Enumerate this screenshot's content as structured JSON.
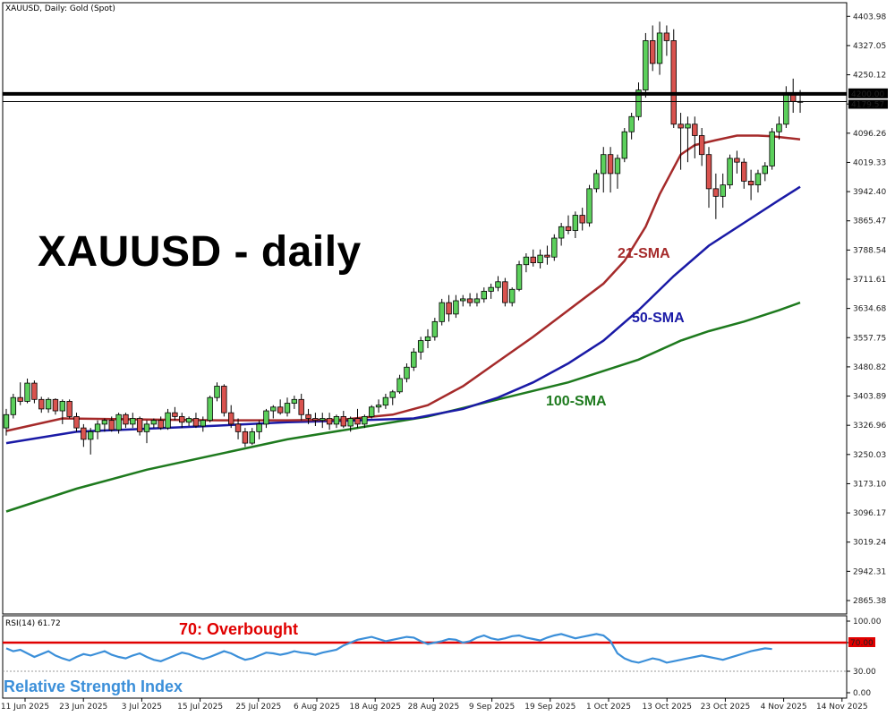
{
  "header": {
    "symbol_text": "XAUUSD, Daily:  Gold (Spot)",
    "rsi_text": "RSI(14) 61.72"
  },
  "overlay": {
    "title": "XAUUSD - daily",
    "sma21_label": "21-SMA",
    "sma50_label": "50-SMA",
    "sma100_label": "100-SMA",
    "overbought_label": "70: Overbought",
    "rsi_label": "Relative Strength Index"
  },
  "colors": {
    "bull": "#5cd05c",
    "bear": "#d9534f",
    "candle_outline": "#000000",
    "sma21": "#a52a2a",
    "sma50": "#1a1aa6",
    "sma100": "#1e7a1e",
    "rsi": "#3b8fd9",
    "overbought": "#e00000",
    "resistance": "#000000",
    "label_21": "#a52a2a",
    "label_50": "#1a1aa6",
    "label_100": "#1e7a1e",
    "label_ob": "#e00000",
    "label_rsi": "#3b8fd9"
  },
  "price_axis": {
    "ticks": [
      "4403.98",
      "4327.05",
      "4250.12",
      "4173.19",
      "4096.26",
      "4019.33",
      "3942.40",
      "3865.47",
      "3788.54",
      "3711.61",
      "3634.68",
      "3557.75",
      "3480.82",
      "3403.89",
      "3326.96",
      "3250.03",
      "3173.10",
      "3096.17",
      "3019.24",
      "2942.31",
      "2865.38"
    ],
    "resistance_label": "4200.00",
    "current_label": "4179.57"
  },
  "rsi_axis": {
    "ticks": [
      "100.00",
      "70.00",
      "30.00",
      "0.00"
    ],
    "ob_label": "70.00"
  },
  "date_axis": [
    "11 Jun 2025",
    "23 Jun 2025",
    "3 Jul 2025",
    "15 Jul 2025",
    "25 Jul 2025",
    "6 Aug 2025",
    "18 Aug 2025",
    "28 Aug 2025",
    "9 Sep 2025",
    "19 Sep 2025",
    "1 Oct 2025",
    "13 Oct 2025",
    "23 Oct 2025",
    "4 Nov 2025",
    "14 Nov 2025"
  ],
  "chart_data": {
    "type": "candlestick",
    "title": "XAUUSD - daily",
    "symbol": "XAUUSD",
    "timeframe": "Daily",
    "ylim": [
      2830,
      4440
    ],
    "resistance_level": 4200.0,
    "last_price": 4179.57,
    "candles": [
      [
        3320,
        3370,
        3300,
        3355
      ],
      [
        3355,
        3410,
        3345,
        3400
      ],
      [
        3400,
        3440,
        3380,
        3390
      ],
      [
        3390,
        3450,
        3385,
        3438
      ],
      [
        3438,
        3445,
        3385,
        3395
      ],
      [
        3395,
        3402,
        3360,
        3370
      ],
      [
        3370,
        3400,
        3360,
        3395
      ],
      [
        3395,
        3398,
        3355,
        3365
      ],
      [
        3365,
        3395,
        3330,
        3390
      ],
      [
        3390,
        3395,
        3345,
        3350
      ],
      [
        3350,
        3360,
        3310,
        3320
      ],
      [
        3320,
        3330,
        3270,
        3290
      ],
      [
        3290,
        3320,
        3250,
        3310
      ],
      [
        3310,
        3340,
        3290,
        3330
      ],
      [
        3330,
        3345,
        3310,
        3340
      ],
      [
        3340,
        3350,
        3310,
        3315
      ],
      [
        3315,
        3360,
        3305,
        3355
      ],
      [
        3355,
        3360,
        3320,
        3330
      ],
      [
        3330,
        3360,
        3320,
        3345
      ],
      [
        3345,
        3350,
        3300,
        3310
      ],
      [
        3310,
        3340,
        3280,
        3330
      ],
      [
        3330,
        3345,
        3320,
        3340
      ],
      [
        3340,
        3350,
        3315,
        3320
      ],
      [
        3320,
        3370,
        3315,
        3360
      ],
      [
        3360,
        3375,
        3340,
        3350
      ],
      [
        3350,
        3360,
        3320,
        3335
      ],
      [
        3335,
        3350,
        3325,
        3345
      ],
      [
        3345,
        3360,
        3320,
        3325
      ],
      [
        3325,
        3350,
        3310,
        3340
      ],
      [
        3340,
        3405,
        3335,
        3400
      ],
      [
        3400,
        3440,
        3390,
        3430
      ],
      [
        3430,
        3435,
        3350,
        3360
      ],
      [
        3360,
        3380,
        3320,
        3330
      ],
      [
        3330,
        3345,
        3290,
        3310
      ],
      [
        3310,
        3320,
        3270,
        3280
      ],
      [
        3280,
        3320,
        3275,
        3310
      ],
      [
        3310,
        3340,
        3290,
        3330
      ],
      [
        3330,
        3370,
        3320,
        3365
      ],
      [
        3365,
        3380,
        3345,
        3375
      ],
      [
        3375,
        3395,
        3355,
        3360
      ],
      [
        3360,
        3400,
        3350,
        3385
      ],
      [
        3385,
        3405,
        3370,
        3395
      ],
      [
        3395,
        3410,
        3340,
        3355
      ],
      [
        3355,
        3370,
        3330,
        3345
      ],
      [
        3345,
        3360,
        3325,
        3340
      ],
      [
        3340,
        3360,
        3320,
        3345
      ],
      [
        3345,
        3360,
        3315,
        3330
      ],
      [
        3330,
        3355,
        3320,
        3350
      ],
      [
        3350,
        3365,
        3320,
        3325
      ],
      [
        3325,
        3350,
        3310,
        3345
      ],
      [
        3345,
        3370,
        3320,
        3330
      ],
      [
        3330,
        3355,
        3320,
        3350
      ],
      [
        3350,
        3380,
        3345,
        3375
      ],
      [
        3375,
        3395,
        3360,
        3380
      ],
      [
        3380,
        3410,
        3370,
        3400
      ],
      [
        3400,
        3420,
        3380,
        3415
      ],
      [
        3415,
        3460,
        3410,
        3450
      ],
      [
        3450,
        3490,
        3440,
        3480
      ],
      [
        3480,
        3530,
        3470,
        3520
      ],
      [
        3520,
        3560,
        3500,
        3550
      ],
      [
        3550,
        3580,
        3530,
        3560
      ],
      [
        3560,
        3610,
        3550,
        3600
      ],
      [
        3600,
        3660,
        3590,
        3650
      ],
      [
        3650,
        3670,
        3600,
        3620
      ],
      [
        3620,
        3670,
        3610,
        3655
      ],
      [
        3655,
        3670,
        3640,
        3660
      ],
      [
        3660,
        3675,
        3640,
        3650
      ],
      [
        3650,
        3675,
        3640,
        3660
      ],
      [
        3660,
        3690,
        3650,
        3680
      ],
      [
        3680,
        3700,
        3660,
        3690
      ],
      [
        3690,
        3720,
        3680,
        3705
      ],
      [
        3705,
        3715,
        3640,
        3650
      ],
      [
        3650,
        3690,
        3640,
        3685
      ],
      [
        3685,
        3760,
        3680,
        3750
      ],
      [
        3750,
        3780,
        3730,
        3770
      ],
      [
        3770,
        3790,
        3745,
        3755
      ],
      [
        3755,
        3790,
        3740,
        3775
      ],
      [
        3775,
        3800,
        3750,
        3770
      ],
      [
        3770,
        3830,
        3760,
        3820
      ],
      [
        3820,
        3860,
        3800,
        3850
      ],
      [
        3850,
        3880,
        3830,
        3840
      ],
      [
        3840,
        3890,
        3820,
        3880
      ],
      [
        3880,
        3900,
        3840,
        3860
      ],
      [
        3860,
        3960,
        3850,
        3950
      ],
      [
        3950,
        4000,
        3940,
        3990
      ],
      [
        3990,
        4060,
        3940,
        4040
      ],
      [
        4040,
        4060,
        3940,
        3990
      ],
      [
        3990,
        4040,
        3950,
        4030
      ],
      [
        4030,
        4110,
        4020,
        4100
      ],
      [
        4100,
        4150,
        4080,
        4140
      ],
      [
        4140,
        4230,
        4130,
        4210
      ],
      [
        4210,
        4360,
        4190,
        4340
      ],
      [
        4340,
        4380,
        4260,
        4280
      ],
      [
        4280,
        4390,
        4250,
        4360
      ],
      [
        4360,
        4380,
        4300,
        4340
      ],
      [
        4340,
        4370,
        4110,
        4120
      ],
      [
        4120,
        4150,
        4000,
        4110
      ],
      [
        4110,
        4140,
        4020,
        4120
      ],
      [
        4120,
        4140,
        4030,
        4090
      ],
      [
        4090,
        4110,
        4010,
        4040
      ],
      [
        4040,
        4060,
        3900,
        3950
      ],
      [
        3950,
        3990,
        3870,
        3930
      ],
      [
        3930,
        3990,
        3900,
        3960
      ],
      [
        3960,
        4040,
        3950,
        4030
      ],
      [
        4030,
        4050,
        3990,
        4020
      ],
      [
        4020,
        4030,
        3950,
        3970
      ],
      [
        3970,
        4000,
        3920,
        3960
      ],
      [
        3960,
        4000,
        3940,
        3990
      ],
      [
        3990,
        4020,
        3970,
        4010
      ],
      [
        4010,
        4110,
        4000,
        4100
      ],
      [
        4100,
        4140,
        4080,
        4120
      ],
      [
        4120,
        4220,
        4110,
        4200
      ],
      [
        4200,
        4240,
        4150,
        4180
      ],
      [
        4180,
        4210,
        4150,
        4180
      ]
    ],
    "sma21": [
      [
        0,
        3312
      ],
      [
        8,
        3345
      ],
      [
        20,
        3342
      ],
      [
        30,
        3340
      ],
      [
        40,
        3340
      ],
      [
        48,
        3342
      ],
      [
        55,
        3355
      ],
      [
        60,
        3380
      ],
      [
        65,
        3430
      ],
      [
        70,
        3495
      ],
      [
        75,
        3560
      ],
      [
        80,
        3630
      ],
      [
        85,
        3700
      ],
      [
        88,
        3760
      ],
      [
        91,
        3850
      ],
      [
        93,
        3935
      ],
      [
        96,
        4040
      ],
      [
        98,
        4065
      ],
      [
        101,
        4078
      ],
      [
        104,
        4090
      ],
      [
        107,
        4090
      ],
      [
        109,
        4088
      ],
      [
        113,
        4080
      ]
    ],
    "sma50": [
      [
        0,
        3280
      ],
      [
        10,
        3310
      ],
      [
        20,
        3318
      ],
      [
        30,
        3326
      ],
      [
        40,
        3335
      ],
      [
        50,
        3340
      ],
      [
        58,
        3345
      ],
      [
        65,
        3370
      ],
      [
        70,
        3400
      ],
      [
        75,
        3440
      ],
      [
        80,
        3490
      ],
      [
        85,
        3550
      ],
      [
        90,
        3630
      ],
      [
        95,
        3720
      ],
      [
        100,
        3800
      ],
      [
        105,
        3860
      ],
      [
        110,
        3920
      ],
      [
        113,
        3955
      ]
    ],
    "sma100": [
      [
        0,
        3100
      ],
      [
        10,
        3160
      ],
      [
        20,
        3210
      ],
      [
        30,
        3250
      ],
      [
        40,
        3290
      ],
      [
        50,
        3320
      ],
      [
        60,
        3350
      ],
      [
        70,
        3395
      ],
      [
        80,
        3440
      ],
      [
        90,
        3500
      ],
      [
        96,
        3550
      ],
      [
        100,
        3575
      ],
      [
        105,
        3600
      ],
      [
        110,
        3630
      ],
      [
        113,
        3650
      ]
    ],
    "rsi": [
      62,
      58,
      60,
      55,
      50,
      54,
      58,
      52,
      48,
      45,
      50,
      54,
      52,
      55,
      58,
      53,
      50,
      48,
      52,
      55,
      50,
      46,
      44,
      48,
      52,
      56,
      54,
      50,
      47,
      50,
      54,
      58,
      55,
      50,
      46,
      48,
      52,
      56,
      55,
      53,
      55,
      58,
      56,
      55,
      53,
      56,
      58,
      60,
      66,
      70,
      74,
      76,
      78,
      75,
      72,
      74,
      76,
      78,
      77,
      72,
      68,
      70,
      72,
      75,
      74,
      70,
      72,
      77,
      80,
      76,
      74,
      76,
      79,
      80,
      77,
      75,
      73,
      77,
      80,
      82,
      79,
      76,
      78,
      80,
      82,
      80,
      72,
      55,
      48,
      44,
      42,
      45,
      48,
      46,
      42,
      44,
      46,
      48,
      50,
      52,
      50,
      48,
      46,
      49,
      52,
      55,
      58,
      60,
      62,
      61
    ],
    "rsi_ylim": [
      0,
      100
    ],
    "overbought_level": 70,
    "oversold_level": 30
  }
}
